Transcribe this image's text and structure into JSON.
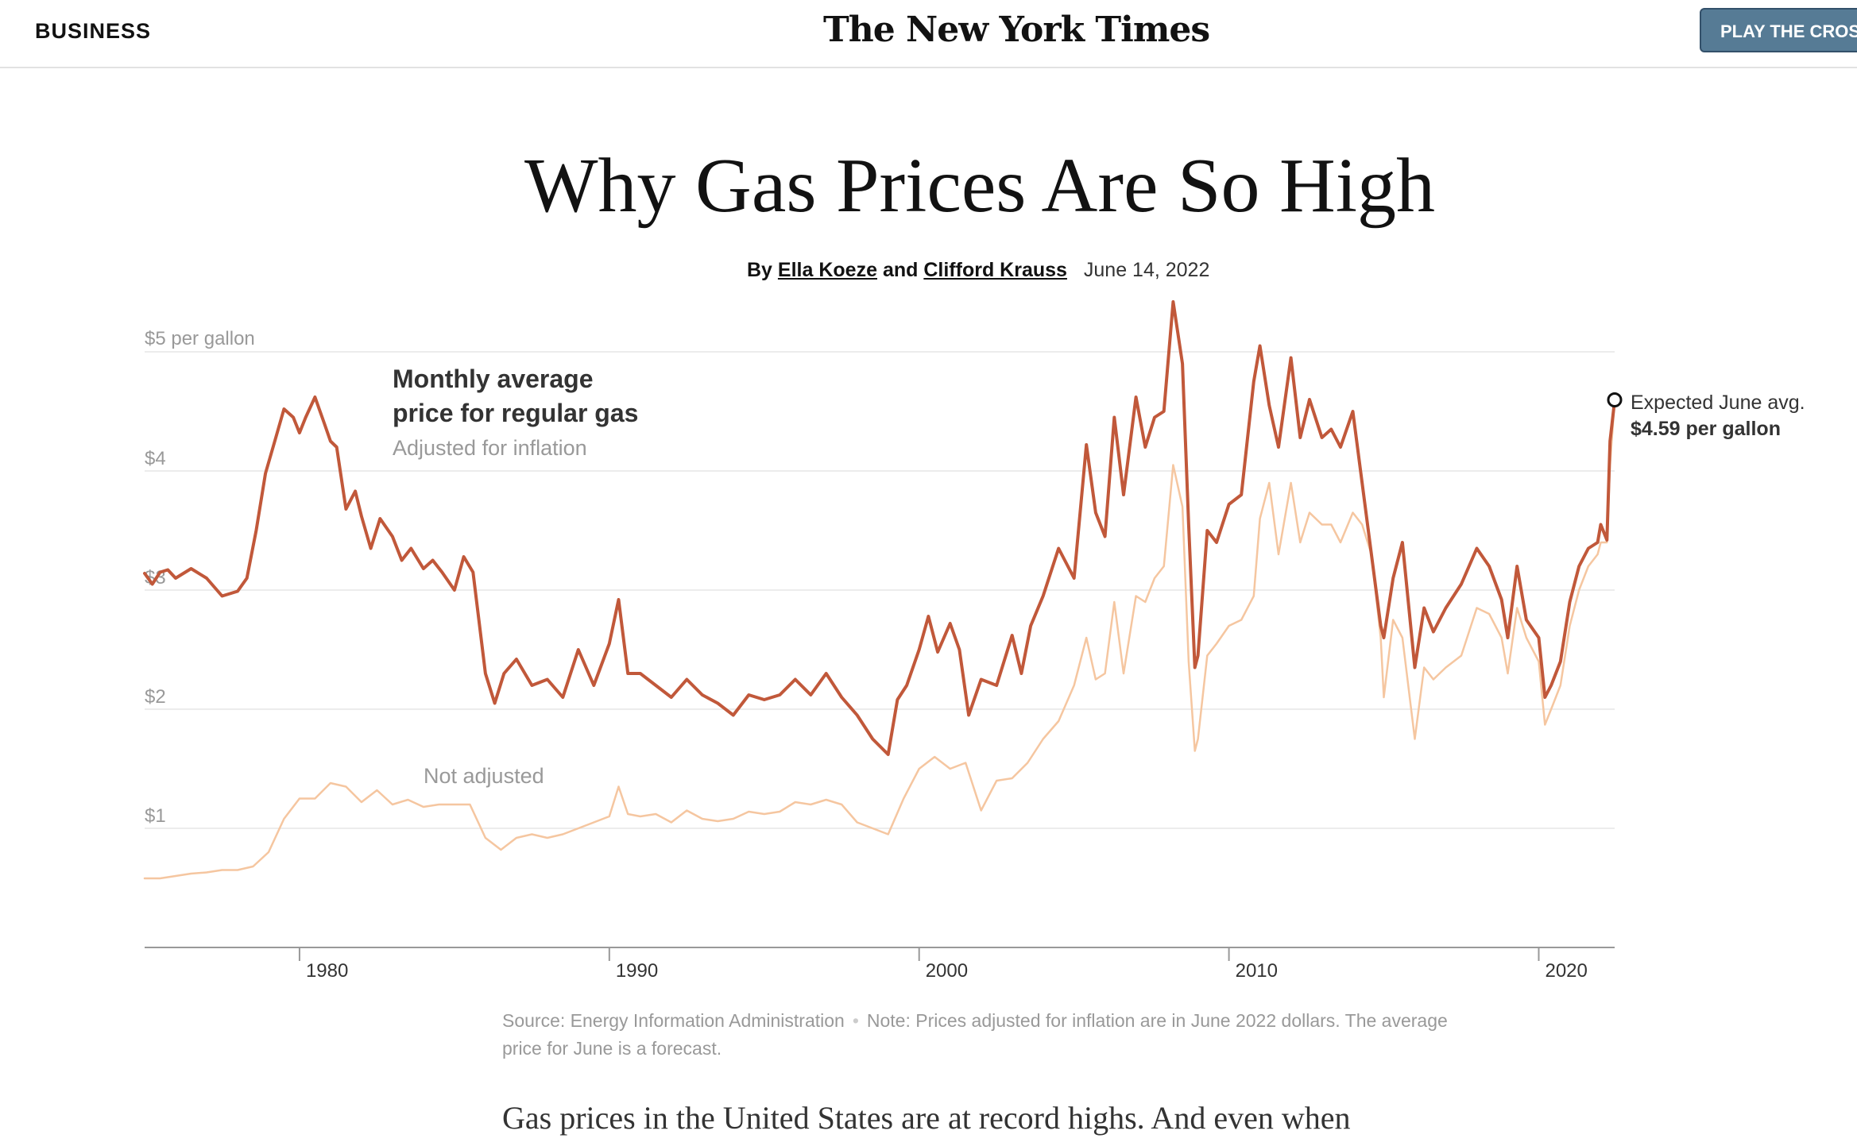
{
  "header": {
    "section": "BUSINESS",
    "masthead": "The New York Times",
    "crossword_button": "PLAY THE CROS"
  },
  "article": {
    "headline": "Why Gas Prices Are So High",
    "by": "By",
    "author1": "Ella Koeze",
    "and": "and",
    "author2": "Clifford Krauss",
    "date": "June 14, 2022",
    "source": "Source: Energy Information Administration",
    "note": "Note: Prices adjusted for inflation are in June 2022 dollars. The average price for June is a forecast.",
    "body_start": "Gas prices in the United States are at record highs. And even when"
  },
  "chart_data": {
    "type": "line",
    "title_line1": "Monthly average",
    "title_line2": "price for regular gas",
    "subtitle": "Adjusted for inflation",
    "ylabel_top": "$5 per gallon",
    "ytick_labels": [
      "$1",
      "$2",
      "$3",
      "$4"
    ],
    "yticks": [
      1,
      2,
      3,
      4,
      5
    ],
    "xticks": [
      1980,
      1990,
      2000,
      2010,
      2020
    ],
    "xtick_labels": [
      "1980",
      "1990",
      "2000",
      "2010",
      "2020"
    ],
    "xlim": [
      1975.0,
      2022.45
    ],
    "ylim": [
      0,
      5.3
    ],
    "grid": true,
    "annotation_nominal": "Not adjusted",
    "annotation_end_line1": "Expected June avg.",
    "annotation_end_line2": "$4.59 per gallon",
    "colors": {
      "adjusted": "#c1583a",
      "nominal": "#f5c6a0",
      "grid": "#e6e6e6",
      "axis": "#999999",
      "tick_text": "#999999"
    },
    "series": [
      {
        "key": "adjusted",
        "x": [
          1975.0,
          1975.25,
          1975.5,
          1975.75,
          1976.0,
          1976.5,
          1977.0,
          1977.5,
          1978.0,
          1978.3,
          1978.6,
          1978.9,
          1979.2,
          1979.5,
          1979.8,
          1980.0,
          1980.2,
          1980.5,
          1980.8,
          1981.0,
          1981.2,
          1981.5,
          1981.8,
          1982.0,
          1982.3,
          1982.6,
          1983.0,
          1983.3,
          1983.6,
          1984.0,
          1984.3,
          1984.6,
          1985.0,
          1985.3,
          1985.6,
          1986.0,
          1986.3,
          1986.6,
          1987.0,
          1987.5,
          1988.0,
          1988.5,
          1989.0,
          1989.5,
          1990.0,
          1990.3,
          1990.6,
          1991.0,
          1991.5,
          1992.0,
          1992.5,
          1993.0,
          1993.5,
          1994.0,
          1994.5,
          1995.0,
          1995.5,
          1996.0,
          1996.5,
          1997.0,
          1997.5,
          1998.0,
          1998.5,
          1999.0,
          1999.3,
          1999.6,
          2000.0,
          2000.3,
          2000.6,
          2001.0,
          2001.3,
          2001.6,
          2002.0,
          2002.5,
          2003.0,
          2003.3,
          2003.6,
          2004.0,
          2004.5,
          2005.0,
          2005.4,
          2005.7,
          2006.0,
          2006.3,
          2006.6,
          2007.0,
          2007.3,
          2007.6,
          2007.9,
          2008.2,
          2008.5,
          2008.7,
          2008.9,
          2009.0,
          2009.3,
          2009.6,
          2010.0,
          2010.4,
          2010.8,
          2011.0,
          2011.3,
          2011.6,
          2012.0,
          2012.3,
          2012.6,
          2013.0,
          2013.3,
          2013.6,
          2014.0,
          2014.3,
          2014.6,
          2014.9,
          2015.0,
          2015.3,
          2015.6,
          2016.0,
          2016.3,
          2016.6,
          2017.0,
          2017.5,
          2018.0,
          2018.4,
          2018.8,
          2019.0,
          2019.3,
          2019.6,
          2020.0,
          2020.2,
          2020.4,
          2020.7,
          2021.0,
          2021.3,
          2021.6,
          2021.9,
          2022.0,
          2022.2,
          2022.3,
          2022.45
        ],
        "y": [
          3.14,
          3.05,
          3.15,
          3.17,
          3.1,
          3.18,
          3.1,
          2.95,
          2.99,
          3.1,
          3.5,
          3.98,
          4.25,
          4.52,
          4.45,
          4.32,
          4.45,
          4.62,
          4.4,
          4.25,
          4.2,
          3.68,
          3.83,
          3.62,
          3.35,
          3.6,
          3.45,
          3.25,
          3.35,
          3.18,
          3.25,
          3.15,
          3.0,
          3.28,
          3.15,
          2.3,
          2.05,
          2.3,
          2.42,
          2.2,
          2.25,
          2.1,
          2.5,
          2.2,
          2.55,
          2.92,
          2.3,
          2.3,
          2.2,
          2.1,
          2.25,
          2.12,
          2.05,
          1.95,
          2.12,
          2.08,
          2.12,
          2.25,
          2.12,
          2.3,
          2.1,
          1.95,
          1.75,
          1.62,
          2.08,
          2.2,
          2.5,
          2.78,
          2.48,
          2.72,
          2.5,
          1.95,
          2.25,
          2.2,
          2.62,
          2.3,
          2.7,
          2.95,
          3.35,
          3.1,
          4.22,
          3.65,
          3.45,
          4.45,
          3.8,
          4.62,
          4.2,
          4.45,
          4.5,
          5.42,
          4.9,
          3.55,
          2.35,
          2.45,
          3.5,
          3.4,
          3.72,
          3.8,
          4.75,
          5.05,
          4.55,
          4.2,
          4.95,
          4.28,
          4.6,
          4.28,
          4.35,
          4.2,
          4.5,
          3.9,
          3.3,
          2.7,
          2.6,
          3.1,
          3.4,
          2.35,
          2.85,
          2.65,
          2.85,
          3.05,
          3.35,
          3.2,
          2.92,
          2.6,
          3.2,
          2.75,
          2.6,
          2.1,
          2.2,
          2.4,
          2.9,
          3.2,
          3.35,
          3.4,
          3.55,
          3.42,
          4.25,
          4.59
        ]
      },
      {
        "key": "nominal",
        "x": [
          1975.0,
          1975.5,
          1976.0,
          1976.5,
          1977.0,
          1977.5,
          1978.0,
          1978.5,
          1979.0,
          1979.5,
          1980.0,
          1980.5,
          1981.0,
          1981.5,
          1982.0,
          1982.5,
          1983.0,
          1983.5,
          1984.0,
          1984.5,
          1985.0,
          1985.5,
          1986.0,
          1986.5,
          1987.0,
          1987.5,
          1988.0,
          1988.5,
          1989.0,
          1989.5,
          1990.0,
          1990.3,
          1990.6,
          1991.0,
          1991.5,
          1992.0,
          1992.5,
          1993.0,
          1993.5,
          1994.0,
          1994.5,
          1995.0,
          1995.5,
          1996.0,
          1996.5,
          1997.0,
          1997.5,
          1998.0,
          1998.5,
          1999.0,
          1999.5,
          2000.0,
          2000.5,
          2001.0,
          2001.5,
          2002.0,
          2002.5,
          2003.0,
          2003.5,
          2004.0,
          2004.5,
          2005.0,
          2005.4,
          2005.7,
          2006.0,
          2006.3,
          2006.6,
          2007.0,
          2007.3,
          2007.6,
          2007.9,
          2008.2,
          2008.5,
          2008.7,
          2008.9,
          2009.0,
          2009.3,
          2009.6,
          2010.0,
          2010.4,
          2010.8,
          2011.0,
          2011.3,
          2011.6,
          2012.0,
          2012.3,
          2012.6,
          2013.0,
          2013.3,
          2013.6,
          2014.0,
          2014.3,
          2014.6,
          2014.9,
          2015.0,
          2015.3,
          2015.6,
          2016.0,
          2016.3,
          2016.6,
          2017.0,
          2017.5,
          2018.0,
          2018.4,
          2018.8,
          2019.0,
          2019.3,
          2019.6,
          2020.0,
          2020.2,
          2020.4,
          2020.7,
          2021.0,
          2021.3,
          2021.6,
          2021.9,
          2022.0,
          2022.2,
          2022.3,
          2022.45
        ],
        "y": [
          0.58,
          0.58,
          0.6,
          0.62,
          0.63,
          0.65,
          0.65,
          0.68,
          0.8,
          1.08,
          1.25,
          1.25,
          1.38,
          1.35,
          1.22,
          1.32,
          1.2,
          1.24,
          1.18,
          1.2,
          1.2,
          1.2,
          0.92,
          0.82,
          0.92,
          0.95,
          0.92,
          0.95,
          1.0,
          1.05,
          1.1,
          1.35,
          1.12,
          1.1,
          1.12,
          1.05,
          1.15,
          1.08,
          1.06,
          1.08,
          1.14,
          1.12,
          1.14,
          1.22,
          1.2,
          1.24,
          1.2,
          1.05,
          1.0,
          0.95,
          1.25,
          1.5,
          1.6,
          1.5,
          1.55,
          1.15,
          1.4,
          1.42,
          1.55,
          1.75,
          1.9,
          2.2,
          2.6,
          2.25,
          2.3,
          2.9,
          2.3,
          2.95,
          2.9,
          3.1,
          3.2,
          4.05,
          3.7,
          2.4,
          1.65,
          1.75,
          2.45,
          2.55,
          2.7,
          2.75,
          2.95,
          3.6,
          3.9,
          3.3,
          3.9,
          3.4,
          3.65,
          3.55,
          3.55,
          3.4,
          3.65,
          3.55,
          3.3,
          2.6,
          2.1,
          2.75,
          2.6,
          1.75,
          2.35,
          2.25,
          2.35,
          2.45,
          2.85,
          2.8,
          2.6,
          2.3,
          2.85,
          2.6,
          2.4,
          1.87,
          2.0,
          2.2,
          2.7,
          3.0,
          3.2,
          3.3,
          3.4,
          3.4,
          4.05,
          4.59
        ]
      }
    ]
  }
}
